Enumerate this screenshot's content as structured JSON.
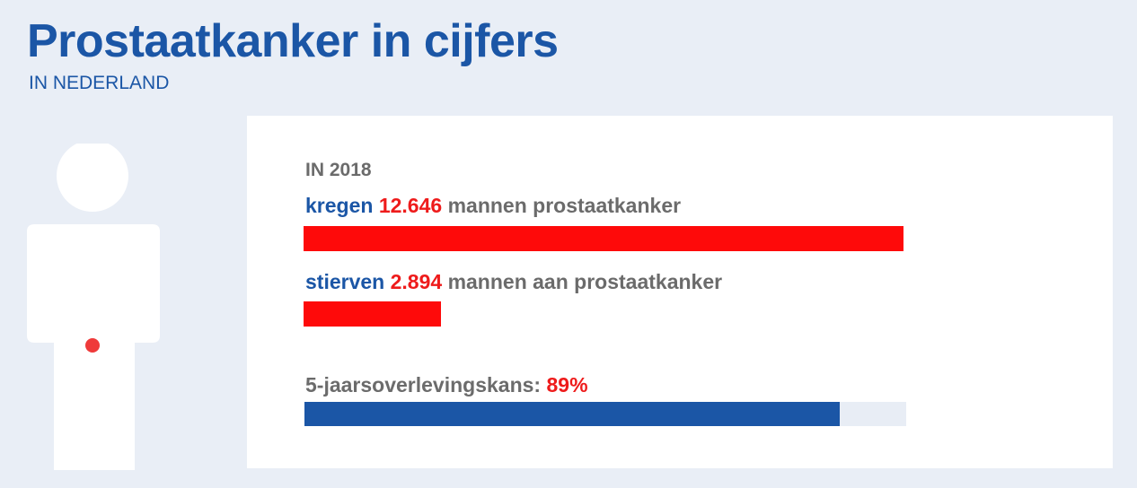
{
  "header": {
    "title": "Prostaatkanker in cijfers",
    "subtitle": "IN NEDERLAND"
  },
  "colors": {
    "background": "#e9eef6",
    "brand_blue": "#1b56a6",
    "accent_red": "#fe0a0a",
    "text_gray": "#6b6b6b"
  },
  "icons": {
    "figure": "person-silhouette-icon",
    "marker": "prostate-marker-dot-icon"
  },
  "chart_data": {
    "type": "bar",
    "year_label": "IN 2018",
    "max": 12646,
    "bars": [
      {
        "prefix": "kregen",
        "value": 12646,
        "value_label": "12.646",
        "suffix": "mannen prostaatkanker",
        "color": "#fe0a0a"
      },
      {
        "prefix": "stierven",
        "value": 2894,
        "value_label": "2.894",
        "suffix": "mannen aan prostaatkanker",
        "color": "#fe0a0a"
      }
    ],
    "survival": {
      "label": "5-jaarsoverlevingskans:",
      "value": 89,
      "value_label": "89%",
      "color": "#1b56a6",
      "track_color": "#e8edf5"
    }
  }
}
